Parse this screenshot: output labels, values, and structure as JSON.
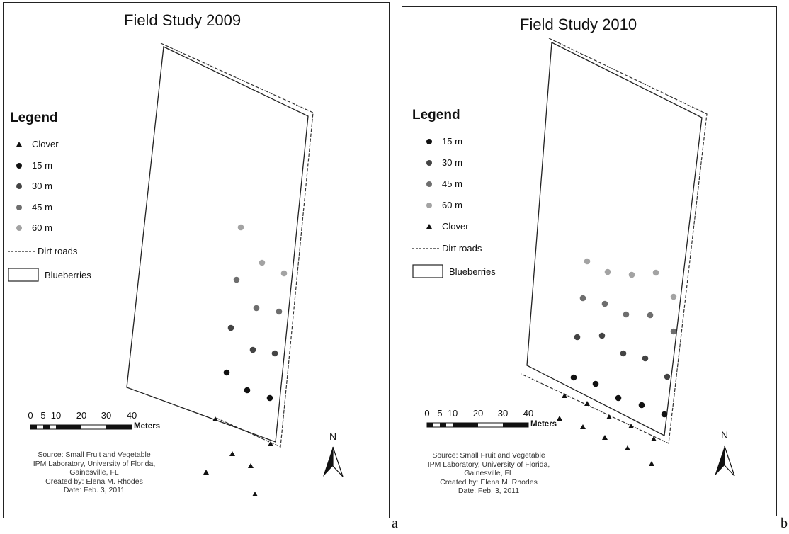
{
  "maps": [
    {
      "title": "Field Study 2009",
      "legend": {
        "title": "Legend",
        "items": [
          {
            "label": "Clover",
            "symbol": "triangle",
            "color": "#111111"
          },
          {
            "label": "15 m",
            "symbol": "circle",
            "color": "#111111"
          },
          {
            "label": "30 m",
            "symbol": "circle",
            "color": "#444444"
          },
          {
            "label": "45 m",
            "symbol": "circle",
            "color": "#6e6e6e"
          },
          {
            "label": "60 m",
            "symbol": "circle",
            "color": "#a3a3a3"
          },
          {
            "label": "Dirt roads",
            "symbol": "dashed-line",
            "color": "#222222"
          },
          {
            "label": "Blueberries",
            "symbol": "box",
            "color": "#222222"
          }
        ]
      },
      "scale_bar": {
        "ticks": [
          "0",
          "5",
          "10",
          "20",
          "30",
          "40"
        ],
        "unit": "Meters"
      },
      "north_arrow": "N",
      "source_text": [
        "Source: Small Fruit and Vegetable",
        "IPM Laboratory, University of Florida,",
        "Gainesville, FL",
        "Created by: Elena M. Rhodes",
        "Date: Feb. 3, 2011"
      ]
    },
    {
      "title": "Field Study 2010",
      "legend": {
        "title": "Legend",
        "items": [
          {
            "label": "15 m",
            "symbol": "circle",
            "color": "#111111"
          },
          {
            "label": "30 m",
            "symbol": "circle",
            "color": "#444444"
          },
          {
            "label": "45 m",
            "symbol": "circle",
            "color": "#6e6e6e"
          },
          {
            "label": "60 m",
            "symbol": "circle",
            "color": "#a3a3a3"
          },
          {
            "label": "Clover",
            "symbol": "triangle",
            "color": "#111111"
          },
          {
            "label": "Dirt roads",
            "symbol": "dashed-line",
            "color": "#222222"
          },
          {
            "label": "Blueberries",
            "symbol": "box",
            "color": "#222222"
          }
        ]
      },
      "scale_bar": {
        "ticks": [
          "0",
          "5",
          "10",
          "20",
          "30",
          "40"
        ],
        "unit": "Meters"
      },
      "north_arrow": "N",
      "source_text": [
        "Source: Small Fruit and Vegetable",
        "IPM Laboratory, University of Florida,",
        "Gainesville, FL",
        "Created by: Elena M. Rhodes",
        "Date: Feb. 3, 2011"
      ]
    }
  ],
  "panel_labels": [
    "a",
    "b"
  ]
}
